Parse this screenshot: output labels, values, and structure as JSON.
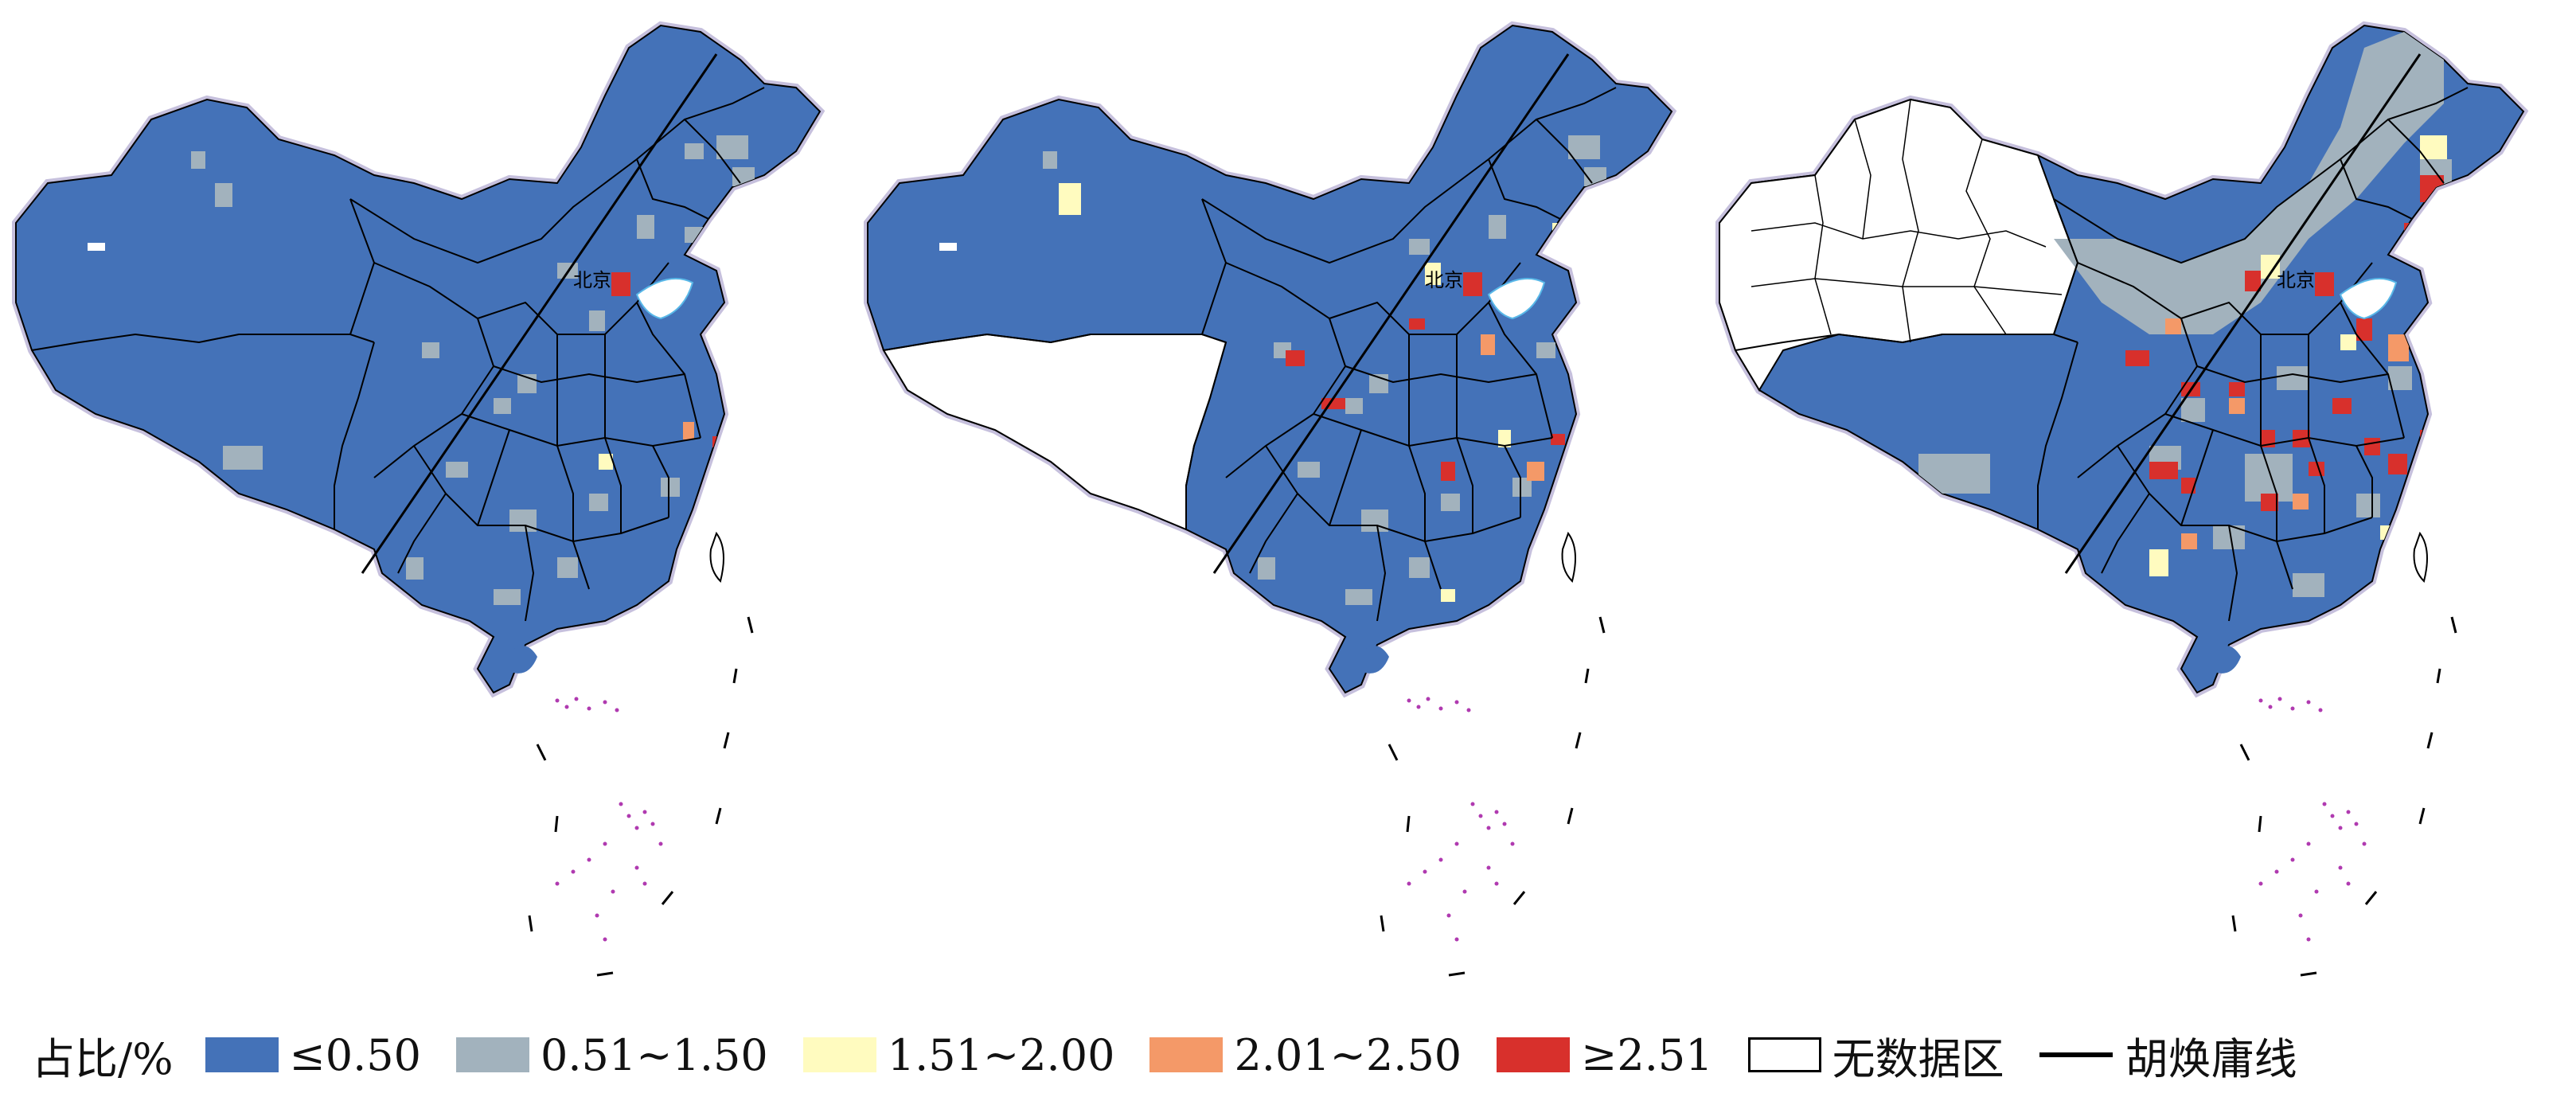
{
  "maps": [
    {
      "nodata": "none",
      "capital_label": "北京"
    },
    {
      "nodata": "tibet",
      "capital_label": "北京"
    },
    {
      "nodata": "xinjiang",
      "capital_label": "北京"
    }
  ],
  "legend": {
    "title": "占比/%",
    "items": [
      {
        "label": "≤0.50",
        "color": "#4472b8"
      },
      {
        "label": "0.51~1.50",
        "color": "#a2b2bd"
      },
      {
        "label": "1.51~2.00",
        "color": "#fffbbf"
      },
      {
        "label": "2.01~2.50",
        "color": "#f49968"
      },
      {
        "label": "≥2.51",
        "color": "#d8302c"
      }
    ],
    "nodata_label": "无数据区",
    "nodata_color": "#ffffff",
    "line_label": "胡焕庸线"
  }
}
